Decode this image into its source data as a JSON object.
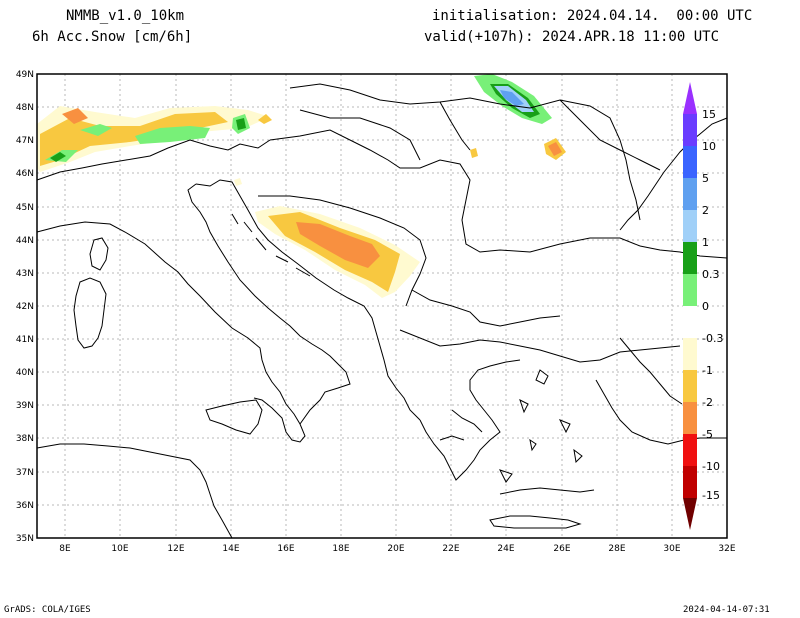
{
  "header": {
    "model": "NMMB_v1.0_10km",
    "variable": "6h Acc.Snow [cm/6h]",
    "init": "initialisation: 2024.04.14.  00:00 UTC",
    "valid": "valid(+107h): 2024.APR.18 11:00 UTC"
  },
  "axes": {
    "lat_labels": [
      "49N",
      "48N",
      "47N",
      "46N",
      "45N",
      "44N",
      "43N",
      "42N",
      "41N",
      "40N",
      "39N",
      "38N",
      "37N",
      "36N",
      "35N"
    ],
    "lon_labels": [
      "8E",
      "10E",
      "12E",
      "14E",
      "16E",
      "18E",
      "20E",
      "22E",
      "24E",
      "26E",
      "28E",
      "30E",
      "32E"
    ]
  },
  "legend": {
    "labels": [
      "15",
      "10",
      "5",
      "2",
      "1",
      "0.3",
      "0",
      "-0.3",
      "-1",
      "-2",
      "-5",
      "-10",
      "-15"
    ],
    "colors": {
      "c15": "#6a3cff",
      "c10": "#3a64ff",
      "c5": "#5fa0f0",
      "c2": "#a0d0f8",
      "c1": "#18a018",
      "c03": "#78f078",
      "cm03": "#fffad0",
      "cm1": "#f8c840",
      "cm2": "#f89040",
      "cm5": "#f01010",
      "cm10": "#c00000",
      "cm15": "#800000",
      "top_tip": "#9a30ff",
      "bottom_tip": "#700000"
    }
  },
  "footer": {
    "left": "GrADS: COLA/IGES",
    "right": "2024-04-14-07:31"
  }
}
